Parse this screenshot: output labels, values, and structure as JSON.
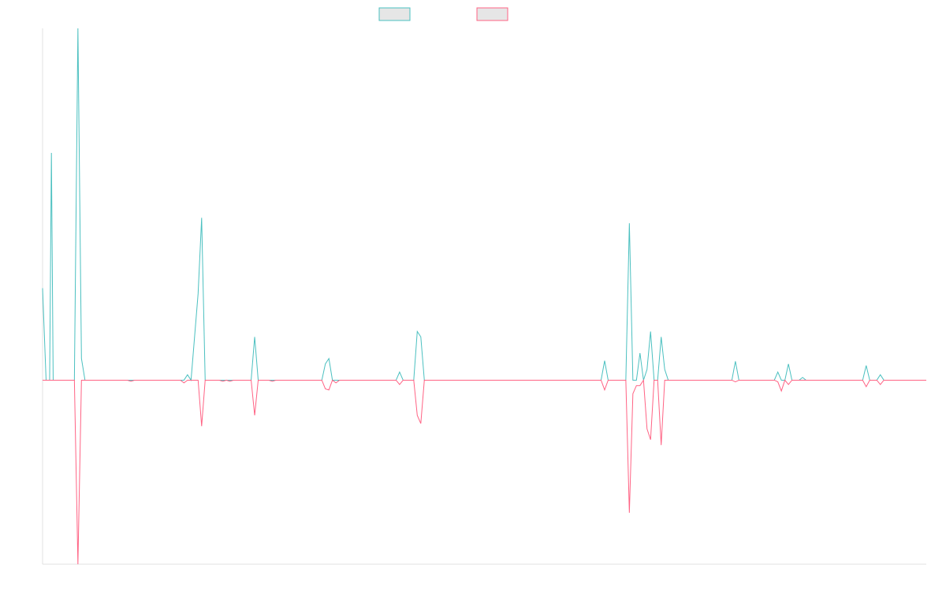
{
  "chart_data": {
    "type": "line",
    "title": "",
    "xlabel": "",
    "ylabel": "",
    "grid": false,
    "legend_position": "top-center",
    "ylim": [
      -0.34,
      0.65
    ],
    "xlim": [
      0,
      250
    ],
    "series": [
      {
        "name": "",
        "color": "#4bc0c0",
        "fill": "#e6e6e6",
        "points": [
          [
            0,
            0.17
          ],
          [
            1,
            0.0
          ],
          [
            2,
            0.0
          ],
          [
            2.5,
            0.42
          ],
          [
            3,
            0.0
          ],
          [
            6,
            0.0
          ],
          [
            9,
            0.0
          ],
          [
            10,
            0.65
          ],
          [
            11,
            0.04
          ],
          [
            12,
            0.0
          ],
          [
            40,
            0.0
          ],
          [
            41,
            0.01
          ],
          [
            42,
            0.0
          ],
          [
            44,
            0.16
          ],
          [
            45,
            0.3
          ],
          [
            46,
            0.0
          ],
          [
            50,
            0.0
          ],
          [
            51,
            0.0
          ],
          [
            52,
            0.0
          ],
          [
            53,
            0.0
          ],
          [
            54,
            0.0
          ],
          [
            55,
            0.0
          ],
          [
            59,
            0.0
          ],
          [
            60,
            0.08
          ],
          [
            61,
            0.0
          ],
          [
            63,
            0.0
          ],
          [
            64,
            0.0
          ],
          [
            65,
            0.0
          ],
          [
            79,
            0.0
          ],
          [
            80,
            0.03
          ],
          [
            81,
            0.04
          ],
          [
            82,
            0.0
          ],
          [
            83,
            0.0
          ],
          [
            84,
            0.0
          ],
          [
            100,
            0.0
          ],
          [
            101,
            0.015
          ],
          [
            102,
            0.0
          ],
          [
            105,
            0.0
          ],
          [
            106,
            0.09
          ],
          [
            107,
            0.08
          ],
          [
            108,
            0.0
          ],
          [
            130,
            0.0
          ],
          [
            158,
            0.0
          ],
          [
            159,
            0.036
          ],
          [
            160,
            0.0
          ],
          [
            165,
            0.0
          ],
          [
            166,
            0.29
          ],
          [
            167,
            0.0
          ],
          [
            168,
            0.0
          ],
          [
            169,
            0.05
          ],
          [
            170,
            0.0
          ],
          [
            171,
            0.02
          ],
          [
            172,
            0.09
          ],
          [
            173,
            0.0
          ],
          [
            174,
            0.0
          ],
          [
            175,
            0.08
          ],
          [
            176,
            0.02
          ],
          [
            177,
            0.0
          ],
          [
            195,
            0.0
          ],
          [
            196,
            0.035
          ],
          [
            197,
            0.0
          ],
          [
            207,
            0.0
          ],
          [
            208,
            0.015
          ],
          [
            209,
            0.0
          ],
          [
            210,
            0.0
          ],
          [
            211,
            0.03
          ],
          [
            212,
            0.0
          ],
          [
            214,
            0.0
          ],
          [
            215,
            0.005
          ],
          [
            216,
            0.0
          ],
          [
            232,
            0.0
          ],
          [
            233,
            0.027
          ],
          [
            234,
            0.0
          ],
          [
            236,
            0.0
          ],
          [
            237,
            0.01
          ],
          [
            238,
            0.0
          ],
          [
            250,
            0.0
          ]
        ]
      },
      {
        "name": "",
        "color": "#ff6384",
        "fill": "#e6e6e6",
        "points": [
          [
            0,
            0.0
          ],
          [
            9,
            0.0
          ],
          [
            10,
            -0.34
          ],
          [
            11,
            0.0
          ],
          [
            12,
            0.0
          ],
          [
            24,
            0.0
          ],
          [
            25,
            -0.002
          ],
          [
            26,
            0.0
          ],
          [
            39,
            0.0
          ],
          [
            40,
            -0.005
          ],
          [
            41,
            0.0
          ],
          [
            44,
            0.0
          ],
          [
            45,
            -0.085
          ],
          [
            46,
            0.0
          ],
          [
            50,
            0.0
          ],
          [
            51,
            -0.002
          ],
          [
            52,
            0.0
          ],
          [
            53,
            -0.002
          ],
          [
            54,
            0.0
          ],
          [
            59,
            0.0
          ],
          [
            60,
            -0.065
          ],
          [
            61,
            0.0
          ],
          [
            64,
            0.0
          ],
          [
            65,
            -0.002
          ],
          [
            66,
            0.0
          ],
          [
            79,
            0.0
          ],
          [
            80,
            -0.016
          ],
          [
            81,
            -0.018
          ],
          [
            82,
            0.0
          ],
          [
            83,
            -0.005
          ],
          [
            84,
            0.0
          ],
          [
            100,
            0.0
          ],
          [
            101,
            -0.008
          ],
          [
            102,
            0.0
          ],
          [
            105,
            0.0
          ],
          [
            106,
            -0.065
          ],
          [
            107,
            -0.08
          ],
          [
            108,
            0.0
          ],
          [
            158,
            0.0
          ],
          [
            159,
            -0.018
          ],
          [
            160,
            0.0
          ],
          [
            165,
            0.0
          ],
          [
            166,
            -0.245
          ],
          [
            167,
            -0.025
          ],
          [
            168,
            -0.01
          ],
          [
            169,
            -0.01
          ],
          [
            170,
            0.0
          ],
          [
            171,
            -0.09
          ],
          [
            172,
            -0.11
          ],
          [
            173,
            0.0
          ],
          [
            174,
            0.0
          ],
          [
            175,
            -0.12
          ],
          [
            176,
            0.0
          ],
          [
            195,
            0.0
          ],
          [
            196,
            -0.003
          ],
          [
            197,
            0.0
          ],
          [
            207,
            0.0
          ],
          [
            208,
            -0.003
          ],
          [
            209,
            -0.02
          ],
          [
            210,
            0.0
          ],
          [
            211,
            -0.008
          ],
          [
            212,
            0.0
          ],
          [
            232,
            0.0
          ],
          [
            233,
            -0.012
          ],
          [
            234,
            0.0
          ],
          [
            236,
            0.0
          ],
          [
            237,
            -0.008
          ],
          [
            238,
            0.0
          ],
          [
            250,
            0.0
          ]
        ]
      }
    ]
  }
}
